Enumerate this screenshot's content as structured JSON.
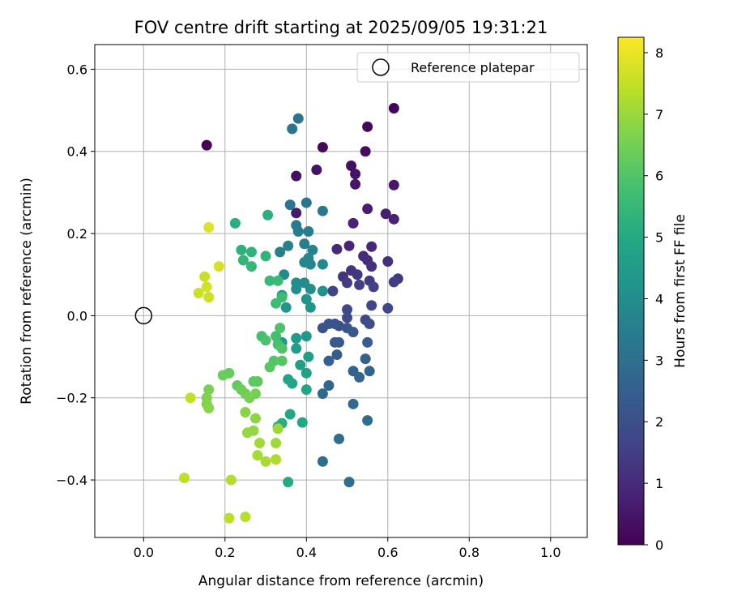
{
  "chart_data": {
    "type": "scatter",
    "title": "FOV centre drift starting at 2025/09/05 19:31:21",
    "xlabel": "Angular distance from reference (arcmin)",
    "ylabel": "Rotation from reference (arcmin)",
    "xlim": [
      -0.12,
      1.09
    ],
    "ylim": [
      -0.54,
      0.66
    ],
    "xticks": [
      0.0,
      0.2,
      0.4,
      0.6,
      0.8,
      1.0
    ],
    "xtick_labels": [
      "0.0",
      "0.2",
      "0.4",
      "0.6",
      "0.8",
      "1.0"
    ],
    "yticks": [
      -0.4,
      -0.2,
      0.0,
      0.2,
      0.4,
      0.6
    ],
    "ytick_labels": [
      "−0.4",
      "−0.2",
      "0.0",
      "0.2",
      "0.4",
      "0.6"
    ],
    "grid": true,
    "legend": {
      "placement": "top-right",
      "entries": [
        "Reference platepar"
      ]
    },
    "reference_point": {
      "x": 0.0,
      "y": 0.0
    },
    "colorbar": {
      "label": "Hours from first FF file",
      "range": [
        0,
        8.25
      ],
      "ticks": [
        0,
        1,
        2,
        3,
        4,
        5,
        6,
        7,
        8
      ],
      "tick_labels": [
        "0",
        "1",
        "2",
        "3",
        "4",
        "5",
        "6",
        "7",
        "8"
      ],
      "colormap": "viridis"
    },
    "points": [
      {
        "x": 0.155,
        "y": 0.415,
        "h": 0.05
      },
      {
        "x": 0.615,
        "y": 0.505,
        "h": 0.1
      },
      {
        "x": 0.55,
        "y": 0.46,
        "h": 0.15
      },
      {
        "x": 0.44,
        "y": 0.41,
        "h": 0.2
      },
      {
        "x": 0.545,
        "y": 0.4,
        "h": 0.25
      },
      {
        "x": 0.51,
        "y": 0.365,
        "h": 0.3
      },
      {
        "x": 0.375,
        "y": 0.34,
        "h": 0.35
      },
      {
        "x": 0.425,
        "y": 0.355,
        "h": 0.4
      },
      {
        "x": 0.52,
        "y": 0.345,
        "h": 0.45
      },
      {
        "x": 0.52,
        "y": 0.32,
        "h": 0.5
      },
      {
        "x": 0.615,
        "y": 0.318,
        "h": 0.55
      },
      {
        "x": 0.375,
        "y": 0.25,
        "h": 0.6
      },
      {
        "x": 0.55,
        "y": 0.26,
        "h": 0.65
      },
      {
        "x": 0.595,
        "y": 0.248,
        "h": 0.7
      },
      {
        "x": 0.615,
        "y": 0.235,
        "h": 0.75
      },
      {
        "x": 0.515,
        "y": 0.225,
        "h": 0.8
      },
      {
        "x": 0.505,
        "y": 0.17,
        "h": 0.85
      },
      {
        "x": 0.56,
        "y": 0.168,
        "h": 0.9
      },
      {
        "x": 0.475,
        "y": 0.162,
        "h": 0.95
      },
      {
        "x": 0.54,
        "y": 0.145,
        "h": 1.0
      },
      {
        "x": 0.55,
        "y": 0.135,
        "h": 1.05
      },
      {
        "x": 0.6,
        "y": 0.132,
        "h": 1.1
      },
      {
        "x": 0.56,
        "y": 0.12,
        "h": 1.15
      },
      {
        "x": 0.51,
        "y": 0.11,
        "h": 1.2
      },
      {
        "x": 0.49,
        "y": 0.095,
        "h": 1.25
      },
      {
        "x": 0.525,
        "y": 0.1,
        "h": 1.3
      },
      {
        "x": 0.625,
        "y": 0.09,
        "h": 1.35
      },
      {
        "x": 0.555,
        "y": 0.085,
        "h": 1.4
      },
      {
        "x": 0.5,
        "y": 0.08,
        "h": 1.45
      },
      {
        "x": 0.615,
        "y": 0.082,
        "h": 1.5
      },
      {
        "x": 0.53,
        "y": 0.075,
        "h": 1.55
      },
      {
        "x": 0.565,
        "y": 0.07,
        "h": 1.6
      },
      {
        "x": 0.465,
        "y": 0.06,
        "h": 1.65
      },
      {
        "x": 0.56,
        "y": 0.025,
        "h": 1.7
      },
      {
        "x": 0.6,
        "y": 0.018,
        "h": 1.75
      },
      {
        "x": 0.5,
        "y": 0.015,
        "h": 1.8
      },
      {
        "x": 0.5,
        "y": -0.005,
        "h": 1.85
      },
      {
        "x": 0.545,
        "y": -0.01,
        "h": 1.9
      },
      {
        "x": 0.555,
        "y": -0.02,
        "h": 1.95
      },
      {
        "x": 0.48,
        "y": -0.025,
        "h": 2.0
      },
      {
        "x": 0.44,
        "y": -0.03,
        "h": 2.05
      },
      {
        "x": 0.455,
        "y": -0.02,
        "h": 2.1
      },
      {
        "x": 0.47,
        "y": -0.02,
        "h": 2.15
      },
      {
        "x": 0.5,
        "y": -0.03,
        "h": 2.2
      },
      {
        "x": 0.515,
        "y": -0.04,
        "h": 2.25
      },
      {
        "x": 0.47,
        "y": -0.065,
        "h": 2.3
      },
      {
        "x": 0.48,
        "y": -0.065,
        "h": 2.35
      },
      {
        "x": 0.55,
        "y": -0.065,
        "h": 2.4
      },
      {
        "x": 0.475,
        "y": -0.095,
        "h": 2.45
      },
      {
        "x": 0.545,
        "y": -0.105,
        "h": 2.5
      },
      {
        "x": 0.455,
        "y": -0.11,
        "h": 2.55
      },
      {
        "x": 0.515,
        "y": -0.135,
        "h": 2.6
      },
      {
        "x": 0.555,
        "y": -0.135,
        "h": 2.65
      },
      {
        "x": 0.53,
        "y": -0.15,
        "h": 2.7
      },
      {
        "x": 0.455,
        "y": -0.17,
        "h": 2.75
      },
      {
        "x": 0.44,
        "y": -0.19,
        "h": 2.8
      },
      {
        "x": 0.515,
        "y": -0.215,
        "h": 2.85
      },
      {
        "x": 0.55,
        "y": -0.255,
        "h": 2.9
      },
      {
        "x": 0.48,
        "y": -0.3,
        "h": 2.95
      },
      {
        "x": 0.44,
        "y": -0.355,
        "h": 3.0
      },
      {
        "x": 0.505,
        "y": -0.405,
        "h": 3.05
      },
      {
        "x": 0.38,
        "y": 0.48,
        "h": 3.1
      },
      {
        "x": 0.365,
        "y": 0.455,
        "h": 3.15
      },
      {
        "x": 0.36,
        "y": 0.27,
        "h": 3.2
      },
      {
        "x": 0.4,
        "y": 0.275,
        "h": 3.25
      },
      {
        "x": 0.44,
        "y": 0.255,
        "h": 3.3
      },
      {
        "x": 0.375,
        "y": 0.22,
        "h": 3.35
      },
      {
        "x": 0.38,
        "y": 0.205,
        "h": 3.4
      },
      {
        "x": 0.405,
        "y": 0.205,
        "h": 3.45
      },
      {
        "x": 0.395,
        "y": 0.175,
        "h": 3.5
      },
      {
        "x": 0.355,
        "y": 0.17,
        "h": 3.55
      },
      {
        "x": 0.335,
        "y": 0.155,
        "h": 3.6
      },
      {
        "x": 0.415,
        "y": 0.16,
        "h": 3.65
      },
      {
        "x": 0.405,
        "y": 0.14,
        "h": 3.7
      },
      {
        "x": 0.395,
        "y": 0.13,
        "h": 3.75
      },
      {
        "x": 0.41,
        "y": 0.125,
        "h": 3.8
      },
      {
        "x": 0.44,
        "y": 0.125,
        "h": 3.85
      },
      {
        "x": 0.345,
        "y": 0.1,
        "h": 3.9
      },
      {
        "x": 0.375,
        "y": 0.08,
        "h": 3.95
      },
      {
        "x": 0.395,
        "y": 0.08,
        "h": 4.0
      },
      {
        "x": 0.41,
        "y": 0.065,
        "h": 4.05
      },
      {
        "x": 0.375,
        "y": 0.065,
        "h": 4.1
      },
      {
        "x": 0.44,
        "y": 0.06,
        "h": 4.15
      },
      {
        "x": 0.34,
        "y": 0.05,
        "h": 4.2
      },
      {
        "x": 0.4,
        "y": 0.04,
        "h": 4.25
      },
      {
        "x": 0.35,
        "y": 0.02,
        "h": 4.3
      },
      {
        "x": 0.41,
        "y": 0.02,
        "h": 4.35
      },
      {
        "x": 0.4,
        "y": -0.05,
        "h": 4.4
      },
      {
        "x": 0.375,
        "y": -0.055,
        "h": 4.45
      },
      {
        "x": 0.34,
        "y": -0.065,
        "h": 4.5
      },
      {
        "x": 0.375,
        "y": -0.08,
        "h": 4.55
      },
      {
        "x": 0.405,
        "y": -0.1,
        "h": 4.6
      },
      {
        "x": 0.385,
        "y": -0.12,
        "h": 4.65
      },
      {
        "x": 0.4,
        "y": -0.14,
        "h": 4.7
      },
      {
        "x": 0.355,
        "y": -0.155,
        "h": 4.75
      },
      {
        "x": 0.365,
        "y": -0.165,
        "h": 4.8
      },
      {
        "x": 0.4,
        "y": -0.18,
        "h": 4.85
      },
      {
        "x": 0.36,
        "y": -0.24,
        "h": 4.9
      },
      {
        "x": 0.39,
        "y": -0.26,
        "h": 4.95
      },
      {
        "x": 0.355,
        "y": -0.405,
        "h": 5.0
      },
      {
        "x": 0.33,
        "y": -0.27,
        "h": 5.05
      },
      {
        "x": 0.34,
        "y": -0.262,
        "h": 5.1
      },
      {
        "x": 0.225,
        "y": 0.225,
        "h": 5.15
      },
      {
        "x": 0.305,
        "y": 0.245,
        "h": 5.2
      },
      {
        "x": 0.24,
        "y": 0.16,
        "h": 5.25
      },
      {
        "x": 0.265,
        "y": 0.155,
        "h": 5.3
      },
      {
        "x": 0.3,
        "y": 0.145,
        "h": 5.35
      },
      {
        "x": 0.245,
        "y": 0.135,
        "h": 5.4
      },
      {
        "x": 0.265,
        "y": 0.12,
        "h": 5.45
      },
      {
        "x": 0.31,
        "y": 0.085,
        "h": 5.5
      },
      {
        "x": 0.33,
        "y": 0.085,
        "h": 5.55
      },
      {
        "x": 0.34,
        "y": 0.045,
        "h": 5.6
      },
      {
        "x": 0.325,
        "y": 0.03,
        "h": 5.65
      },
      {
        "x": 0.29,
        "y": -0.05,
        "h": 5.7
      },
      {
        "x": 0.325,
        "y": -0.05,
        "h": 5.75
      },
      {
        "x": 0.33,
        "y": -0.07,
        "h": 5.8
      },
      {
        "x": 0.3,
        "y": -0.06,
        "h": 5.85
      },
      {
        "x": 0.335,
        "y": -0.03,
        "h": 5.9
      },
      {
        "x": 0.34,
        "y": -0.08,
        "h": 5.95
      },
      {
        "x": 0.32,
        "y": -0.11,
        "h": 6.0
      },
      {
        "x": 0.34,
        "y": -0.11,
        "h": 6.05
      },
      {
        "x": 0.31,
        "y": -0.125,
        "h": 6.1
      },
      {
        "x": 0.27,
        "y": -0.16,
        "h": 6.15
      },
      {
        "x": 0.28,
        "y": -0.16,
        "h": 6.2
      },
      {
        "x": 0.23,
        "y": -0.17,
        "h": 6.25
      },
      {
        "x": 0.21,
        "y": -0.14,
        "h": 6.3
      },
      {
        "x": 0.195,
        "y": -0.145,
        "h": 6.35
      },
      {
        "x": 0.24,
        "y": -0.18,
        "h": 6.4
      },
      {
        "x": 0.25,
        "y": -0.19,
        "h": 6.45
      },
      {
        "x": 0.275,
        "y": -0.19,
        "h": 6.5
      },
      {
        "x": 0.26,
        "y": -0.2,
        "h": 6.55
      },
      {
        "x": 0.16,
        "y": -0.18,
        "h": 6.6
      },
      {
        "x": 0.155,
        "y": -0.2,
        "h": 6.65
      },
      {
        "x": 0.155,
        "y": -0.215,
        "h": 6.7
      },
      {
        "x": 0.16,
        "y": -0.225,
        "h": 6.75
      },
      {
        "x": 0.25,
        "y": -0.235,
        "h": 6.8
      },
      {
        "x": 0.275,
        "y": -0.25,
        "h": 6.85
      },
      {
        "x": 0.27,
        "y": -0.28,
        "h": 6.9
      },
      {
        "x": 0.255,
        "y": -0.285,
        "h": 6.95
      },
      {
        "x": 0.33,
        "y": -0.275,
        "h": 7.0
      },
      {
        "x": 0.325,
        "y": -0.31,
        "h": 7.05
      },
      {
        "x": 0.285,
        "y": -0.31,
        "h": 7.1
      },
      {
        "x": 0.28,
        "y": -0.34,
        "h": 7.15
      },
      {
        "x": 0.3,
        "y": -0.355,
        "h": 7.2
      },
      {
        "x": 0.325,
        "y": -0.35,
        "h": 7.25
      },
      {
        "x": 0.215,
        "y": -0.4,
        "h": 7.3
      },
      {
        "x": 0.25,
        "y": -0.49,
        "h": 7.35
      },
      {
        "x": 0.21,
        "y": -0.493,
        "h": 7.4
      },
      {
        "x": 0.1,
        "y": -0.395,
        "h": 7.45
      },
      {
        "x": 0.115,
        "y": -0.2,
        "h": 7.5
      },
      {
        "x": 0.15,
        "y": 0.095,
        "h": 7.55
      },
      {
        "x": 0.135,
        "y": 0.055,
        "h": 7.6
      },
      {
        "x": 0.16,
        "y": 0.045,
        "h": 7.65
      },
      {
        "x": 0.155,
        "y": 0.07,
        "h": 7.7
      },
      {
        "x": 0.185,
        "y": 0.12,
        "h": 7.75
      },
      {
        "x": 0.16,
        "y": 0.215,
        "h": 7.8
      }
    ]
  }
}
